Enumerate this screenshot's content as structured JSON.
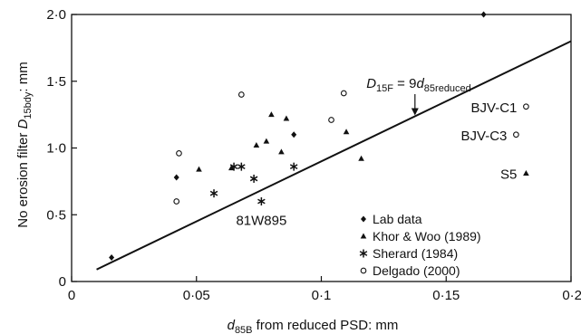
{
  "chart_data": {
    "type": "scatter",
    "xlabel": {
      "main": "d",
      "sub": "85B",
      "rest": " from reduced PSD: mm"
    },
    "ylabel": {
      "pre": "No erosion filter ",
      "main": "D",
      "sub": "15bdy",
      "rest": ": mm"
    },
    "xlim": [
      0,
      0.2
    ],
    "ylim": [
      0,
      2.0
    ],
    "x_ticks": [
      {
        "value": 0,
        "label": "0"
      },
      {
        "value": 0.05,
        "label": "0·05"
      },
      {
        "value": 0.1,
        "label": "0·1"
      },
      {
        "value": 0.15,
        "label": "0·15"
      },
      {
        "value": 0.2,
        "label": "0·2"
      }
    ],
    "y_ticks": [
      {
        "value": 0,
        "label": "0"
      },
      {
        "value": 0.5,
        "label": "0·5"
      },
      {
        "value": 1.0,
        "label": "1·0"
      },
      {
        "value": 1.5,
        "label": "1·5"
      },
      {
        "value": 2.0,
        "label": "2·0"
      }
    ],
    "grid": false,
    "legend_position": "bottom-right",
    "series": [
      {
        "name": "Lab data",
        "marker": "diamond",
        "points": [
          {
            "x": 0.016,
            "y": 0.18
          },
          {
            "x": 0.042,
            "y": 0.78
          },
          {
            "x": 0.089,
            "y": 1.1
          },
          {
            "x": 0.165,
            "y": 2.0
          }
        ]
      },
      {
        "name": "Khor & Woo (1989)",
        "marker": "triangle",
        "points": [
          {
            "x": 0.051,
            "y": 0.84
          },
          {
            "x": 0.064,
            "y": 0.85
          },
          {
            "x": 0.074,
            "y": 1.02
          },
          {
            "x": 0.078,
            "y": 1.05
          },
          {
            "x": 0.08,
            "y": 1.25
          },
          {
            "x": 0.084,
            "y": 0.97
          },
          {
            "x": 0.086,
            "y": 1.22
          },
          {
            "x": 0.11,
            "y": 1.12
          },
          {
            "x": 0.116,
            "y": 0.92
          },
          {
            "x": 0.182,
            "y": 0.81
          }
        ]
      },
      {
        "name": "Sherard (1984)",
        "marker": "asterisk",
        "points": [
          {
            "x": 0.057,
            "y": 0.66
          },
          {
            "x": 0.065,
            "y": 0.86
          },
          {
            "x": 0.068,
            "y": 0.86
          },
          {
            "x": 0.073,
            "y": 0.77
          },
          {
            "x": 0.076,
            "y": 0.6
          },
          {
            "x": 0.089,
            "y": 0.86
          }
        ]
      },
      {
        "name": "Delgado (2000)",
        "marker": "circle",
        "points": [
          {
            "x": 0.042,
            "y": 0.6
          },
          {
            "x": 0.043,
            "y": 0.96
          },
          {
            "x": 0.068,
            "y": 1.4
          },
          {
            "x": 0.104,
            "y": 1.21
          },
          {
            "x": 0.109,
            "y": 1.41
          },
          {
            "x": 0.178,
            "y": 1.1
          },
          {
            "x": 0.182,
            "y": 1.31
          }
        ]
      }
    ],
    "reference_line": {
      "label_main": "D",
      "label_sub": "15F",
      "label_eq": " = 9",
      "label_main2": "d",
      "label_sub2": "85reduced",
      "slope": 9,
      "x_range": [
        0.01,
        0.2
      ]
    },
    "annotations": [
      {
        "text": "BJV-C1",
        "x": 0.182,
        "y": 1.31,
        "anchor": "end"
      },
      {
        "text": "BJV-C3",
        "x": 0.178,
        "y": 1.1,
        "anchor": "end"
      },
      {
        "text": "S5",
        "x": 0.182,
        "y": 0.81,
        "anchor": "end"
      },
      {
        "text": "81W895",
        "x": 0.076,
        "y": 0.6,
        "anchor": "middle"
      }
    ]
  }
}
